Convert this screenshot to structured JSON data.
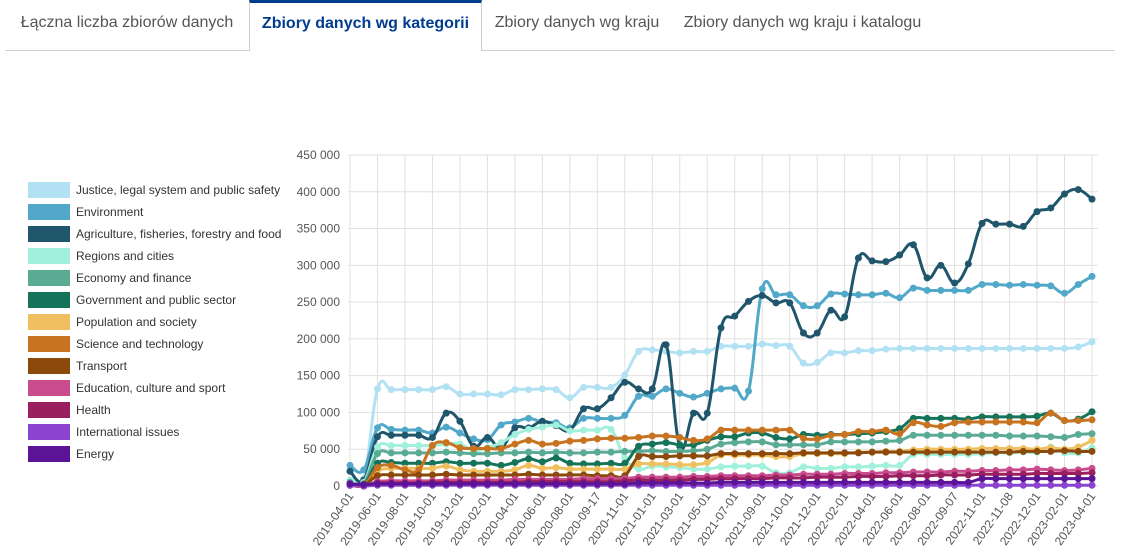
{
  "tabs": [
    {
      "label": "Łączna liczba zbiorów danych",
      "active": false
    },
    {
      "label": "Zbiory danych wg kategorii",
      "active": true
    },
    {
      "label": "Zbiory danych wg kraju",
      "active": false
    },
    {
      "label": "Zbiory danych wg kraju i katalogu",
      "active": false
    }
  ],
  "colors": {
    "active_tab": "#003d8f",
    "grid": "#e0e0e0"
  },
  "chart_data": {
    "type": "line",
    "title": "",
    "xlabel": "",
    "ylabel": "",
    "ylim": [
      0,
      450000
    ],
    "y_ticks": [
      "0",
      "50 000",
      "100 000",
      "150 000",
      "200 000",
      "250 000",
      "300 000",
      "350 000",
      "400 000",
      "450 000"
    ],
    "x_tick_labels": [
      "2019-04-01",
      "2019-06-01",
      "2019-08-01",
      "2019-10-01",
      "2019-12-01",
      "2020-02-01",
      "2020-04-01",
      "2020-06-01",
      "2020-08-01",
      "2020-09-17",
      "2020-11-01",
      "2021-01-01",
      "2021-03-01",
      "2021-05-01",
      "2021-07-01",
      "2021-09-01",
      "2021-10-01",
      "2021-12-01",
      "2022-02-01",
      "2022-04-01",
      "2022-06-01",
      "2022-08-01",
      "2022-09-07",
      "2022-11-01",
      "2022-11-08",
      "2022-12-01",
      "2023-02-01",
      "2023-04-01"
    ],
    "points_per_tick": 2,
    "grid": true,
    "legend_position": "left",
    "series": [
      {
        "name": "Justice, legal system and public safety",
        "color": "#b3e1f4",
        "values": [
          22000,
          10000,
          132000,
          131000,
          131000,
          131000,
          131000,
          135000,
          125000,
          125000,
          125000,
          124000,
          131000,
          131000,
          132000,
          131000,
          120000,
          134000,
          134000,
          134000,
          151000,
          183000,
          185000,
          183000,
          181000,
          183000,
          183000,
          190000,
          190000,
          190000,
          193000,
          191000,
          190000,
          167000,
          168000,
          181000,
          181000,
          184000,
          184000,
          186000,
          187000,
          187000,
          187000,
          187000,
          187000,
          187000,
          187000,
          187000,
          187000,
          187000,
          187000,
          187000,
          187000,
          189000,
          196000
        ]
      },
      {
        "name": "Environment",
        "color": "#51a8c8",
        "values": [
          28000,
          22000,
          79000,
          77000,
          76000,
          76000,
          72000,
          80000,
          72000,
          64000,
          63000,
          83000,
          87000,
          92000,
          87000,
          86000,
          79000,
          92000,
          92000,
          92000,
          96000,
          122000,
          122000,
          132000,
          126000,
          121000,
          126000,
          132000,
          133000,
          129000,
          268000,
          260000,
          260000,
          245000,
          245000,
          261000,
          261000,
          260000,
          260000,
          262000,
          256000,
          269000,
          266000,
          266000,
          266000,
          266000,
          274000,
          274000,
          273000,
          274000,
          273000,
          272000,
          262000,
          274000,
          285000
        ]
      },
      {
        "name": "Agriculture, fisheries, forestry and food",
        "color": "#1f566b",
        "values": [
          20000,
          8000,
          67000,
          69000,
          69000,
          69000,
          66000,
          99000,
          88000,
          54000,
          66000,
          52000,
          79000,
          79000,
          88000,
          82000,
          76000,
          105000,
          105000,
          120000,
          141000,
          132000,
          132000,
          192000,
          54000,
          99000,
          99000,
          215000,
          231000,
          251000,
          259000,
          249000,
          249000,
          208000,
          208000,
          239000,
          230000,
          310000,
          306000,
          305000,
          314000,
          328000,
          283000,
          300000,
          276000,
          302000,
          357000,
          356000,
          356000,
          353000,
          373000,
          378000,
          397000,
          403000,
          390000
        ]
      },
      {
        "name": "Regions and cities",
        "color": "#a1f0dc",
        "values": [
          8000,
          5000,
          53000,
          55000,
          55000,
          55000,
          55000,
          57000,
          57000,
          48000,
          52000,
          59000,
          70000,
          77000,
          80000,
          83000,
          75000,
          76000,
          76000,
          77000,
          38000,
          23000,
          27000,
          26000,
          25000,
          23000,
          23000,
          26000,
          27000,
          27000,
          27000,
          18000,
          18000,
          26000,
          24000,
          24000,
          26000,
          26000,
          27000,
          28000,
          28000,
          43000,
          43000,
          43000,
          43000,
          43000,
          44000,
          45000,
          45000,
          46000,
          46000,
          53000,
          45000,
          45000,
          52000
        ]
      },
      {
        "name": "Economy and finance",
        "color": "#5aab93",
        "values": [
          5000,
          3000,
          44000,
          45000,
          45000,
          45000,
          45000,
          46000,
          45000,
          44000,
          44000,
          45000,
          45000,
          46000,
          45000,
          46000,
          45000,
          45000,
          46000,
          46000,
          47000,
          47000,
          48000,
          47000,
          47000,
          48000,
          50000,
          57000,
          59000,
          60000,
          60000,
          56000,
          56000,
          56000,
          56000,
          60000,
          60000,
          60000,
          60000,
          61000,
          62000,
          69000,
          69000,
          69000,
          69000,
          69000,
          69000,
          69000,
          68000,
          68000,
          68000,
          67000,
          66000,
          70000,
          71000
        ]
      },
      {
        "name": "Government and public sector",
        "color": "#147359",
        "values": [
          3000,
          2000,
          31000,
          32000,
          31000,
          31000,
          31000,
          33000,
          31000,
          31000,
          31000,
          28000,
          32000,
          37000,
          33000,
          38000,
          31000,
          30000,
          30000,
          31000,
          31000,
          54000,
          57000,
          59000,
          56000,
          56000,
          62000,
          67000,
          67000,
          72000,
          72000,
          66000,
          64000,
          70000,
          69000,
          70000,
          70000,
          71000,
          72000,
          74000,
          78000,
          92000,
          92000,
          92000,
          92000,
          91000,
          94000,
          94000,
          94000,
          94000,
          95000,
          99000,
          89000,
          91000,
          101000
        ]
      },
      {
        "name": "Population and society",
        "color": "#f0c060",
        "values": [
          3000,
          2000,
          20000,
          24000,
          24000,
          24000,
          24000,
          27000,
          22000,
          20000,
          20000,
          20000,
          22000,
          28000,
          24000,
          25000,
          23000,
          23000,
          23000,
          23000,
          23000,
          30000,
          30000,
          30000,
          29000,
          29000,
          32000,
          42000,
          42000,
          42000,
          42000,
          40000,
          40000,
          44000,
          44000,
          44000,
          44000,
          46000,
          46000,
          47000,
          47000,
          49000,
          50000,
          50000,
          50000,
          50000,
          51000,
          51000,
          51000,
          51000,
          50000,
          52000,
          50000,
          53000,
          62000
        ]
      },
      {
        "name": "Science and technology",
        "color": "#c87320",
        "values": [
          2000,
          1000,
          25000,
          28000,
          22000,
          22000,
          55000,
          59000,
          52000,
          51000,
          51000,
          51000,
          57000,
          62000,
          57000,
          58000,
          61000,
          62000,
          64000,
          65000,
          65000,
          66000,
          68000,
          68000,
          66000,
          62000,
          64000,
          76000,
          76000,
          76000,
          76000,
          76000,
          76000,
          65000,
          64000,
          69000,
          70000,
          74000,
          74000,
          76000,
          71000,
          86000,
          83000,
          81000,
          86000,
          87000,
          87000,
          87000,
          87000,
          87000,
          86000,
          99000,
          89000,
          89000,
          90000
        ]
      },
      {
        "name": "Transport",
        "color": "#8b4a0c",
        "values": [
          2000,
          1000,
          14000,
          15000,
          15000,
          15000,
          15000,
          16000,
          15000,
          15000,
          15000,
          15000,
          15000,
          16000,
          15000,
          15000,
          15000,
          15000,
          14000,
          14000,
          14000,
          40000,
          40000,
          40000,
          41000,
          41000,
          41000,
          44000,
          44000,
          44000,
          44000,
          44000,
          44000,
          45000,
          45000,
          45000,
          45000,
          45000,
          46000,
          46000,
          46000,
          46000,
          46000,
          46000,
          46000,
          46000,
          46000,
          46000,
          46000,
          47000,
          47000,
          47000,
          48000,
          47000,
          47000
        ]
      },
      {
        "name": "Education, culture and sport",
        "color": "#c94c8f",
        "values": [
          1000,
          0,
          6000,
          7000,
          7000,
          7000,
          7000,
          8000,
          8000,
          8000,
          8000,
          8000,
          9000,
          9000,
          9000,
          9000,
          9000,
          10000,
          10000,
          10000,
          10000,
          12000,
          12000,
          12000,
          12000,
          13000,
          13000,
          14000,
          14000,
          14000,
          14000,
          15000,
          15000,
          16000,
          16000,
          16000,
          17000,
          17000,
          17000,
          18000,
          18000,
          19000,
          19000,
          19000,
          20000,
          20000,
          21000,
          21000,
          22000,
          22000,
          23000,
          22000,
          21000,
          22000,
          24000
        ]
      },
      {
        "name": "Health",
        "color": "#9a1f5f",
        "values": [
          1000,
          0,
          4000,
          4000,
          4000,
          4000,
          5000,
          5000,
          5000,
          5000,
          5000,
          5000,
          5000,
          6000,
          6000,
          6000,
          6000,
          6000,
          6000,
          6000,
          7000,
          8000,
          8000,
          8000,
          8000,
          9000,
          9000,
          10000,
          10000,
          10000,
          10000,
          11000,
          11000,
          11000,
          12000,
          12000,
          12000,
          13000,
          13000,
          13000,
          14000,
          14000,
          14000,
          15000,
          15000,
          15000,
          16000,
          16000,
          16000,
          16000,
          17000,
          17000,
          17000,
          17000,
          18000
        ]
      },
      {
        "name": "International issues",
        "color": "#8b44d0",
        "values": [
          1000,
          0,
          1000,
          1000,
          1000,
          1000,
          1000,
          1000,
          1000,
          1000,
          1000,
          1000,
          1000,
          1000,
          1000,
          1000,
          1000,
          1000,
          1000,
          1000,
          1000,
          1000,
          1000,
          1000,
          1000,
          1000,
          1000,
          1000,
          1000,
          1000,
          1000,
          1000,
          1000,
          1000,
          1000,
          1000,
          1000,
          1000,
          1000,
          1000,
          1000,
          1000,
          1000,
          1000,
          1000,
          1000,
          1000,
          1000,
          1000,
          1000,
          1000,
          1000,
          1000,
          1000,
          1000
        ]
      },
      {
        "name": "Energy",
        "color": "#5b1496",
        "values": [
          3000,
          2000,
          3000,
          3000,
          3000,
          3000,
          3000,
          3000,
          3000,
          3000,
          3000,
          3000,
          3000,
          3000,
          3000,
          3000,
          3000,
          3000,
          3000,
          3000,
          3000,
          4000,
          4000,
          4000,
          4000,
          4000,
          4000,
          5000,
          5000,
          5000,
          5000,
          5000,
          5000,
          5000,
          5000,
          5000,
          5000,
          5000,
          5000,
          5000,
          5000,
          5000,
          5000,
          5000,
          5000,
          5000,
          10000,
          10000,
          10000,
          10000,
          10000,
          10000,
          10000,
          10000,
          10000
        ]
      }
    ]
  }
}
